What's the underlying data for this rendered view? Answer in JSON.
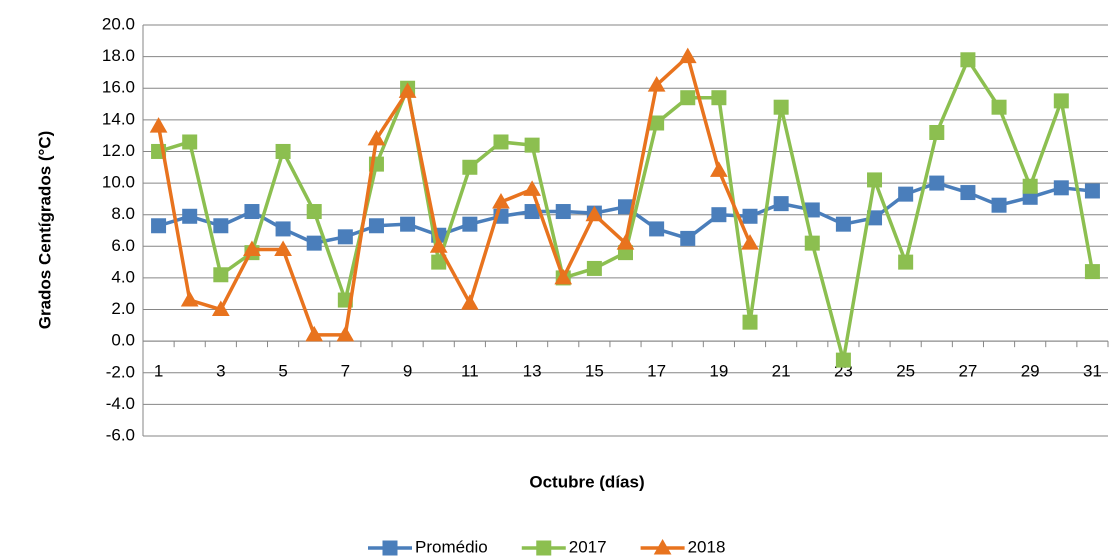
{
  "chart_data": {
    "type": "line",
    "xlabel": "Octubre (días)",
    "ylabel": "Grados Centígrados  (°C)",
    "categories": [
      "1",
      null,
      "3",
      null,
      "5",
      null,
      "7",
      null,
      "9",
      null,
      "11",
      null,
      "13",
      null,
      "15",
      null,
      "17",
      null,
      "19",
      null,
      "21",
      null,
      "23",
      null,
      "25",
      null,
      "27",
      null,
      "29",
      null,
      "31"
    ],
    "series": [
      {
        "name": "Promédio",
        "color": "#4a7ebb",
        "marker": "square",
        "values": [
          7.3,
          7.9,
          7.3,
          8.2,
          7.1,
          6.2,
          6.6,
          7.3,
          7.4,
          6.7,
          7.4,
          7.9,
          8.2,
          8.2,
          8.1,
          8.5,
          7.1,
          6.5,
          8.0,
          7.9,
          8.7,
          8.3,
          7.4,
          7.8,
          9.3,
          10.0,
          9.4,
          8.6,
          9.1,
          9.7,
          9.5
        ]
      },
      {
        "name": "2017",
        "color": "#8cbf50",
        "marker": "square",
        "values": [
          12.0,
          12.6,
          4.2,
          5.6,
          12.0,
          8.2,
          2.6,
          11.2,
          16.0,
          5.0,
          11.0,
          12.6,
          12.4,
          4.0,
          4.6,
          5.6,
          13.8,
          15.4,
          15.4,
          1.2,
          14.8,
          6.2,
          -1.2,
          10.2,
          5.0,
          13.2,
          17.8,
          14.8,
          9.8,
          15.2,
          4.4
        ]
      },
      {
        "name": "2018",
        "color": "#e8731e",
        "marker": "triangle",
        "values": [
          13.6,
          2.6,
          2.0,
          5.8,
          5.8,
          0.4,
          0.4,
          12.8,
          15.8,
          6.0,
          2.4,
          8.8,
          9.6,
          4.0,
          8.0,
          6.2,
          16.2,
          18.0,
          10.8,
          6.2,
          null,
          null,
          null,
          null,
          null,
          null,
          null,
          null,
          null,
          null,
          null
        ]
      }
    ],
    "ylim": [
      -6,
      20
    ],
    "yticks": [
      {
        "value": -6,
        "label": "-6.0"
      },
      {
        "value": -4,
        "label": "-4.0"
      },
      {
        "value": -2,
        "label": "-2.0"
      },
      {
        "value": 0,
        "label": "0.0"
      },
      {
        "value": 2,
        "label": "2.0"
      },
      {
        "value": 4,
        "label": "4.0"
      },
      {
        "value": 6,
        "label": "6.0"
      },
      {
        "value": 8,
        "label": "8.0"
      },
      {
        "value": 10,
        "label": "10.0"
      },
      {
        "value": 12,
        "label": "12.0"
      },
      {
        "value": 14,
        "label": "14.0"
      },
      {
        "value": 16,
        "label": "16.0"
      },
      {
        "value": 18,
        "label": "18.0"
      },
      {
        "value": 20,
        "label": "20.0"
      }
    ],
    "grid": true,
    "legend": "bottom"
  }
}
